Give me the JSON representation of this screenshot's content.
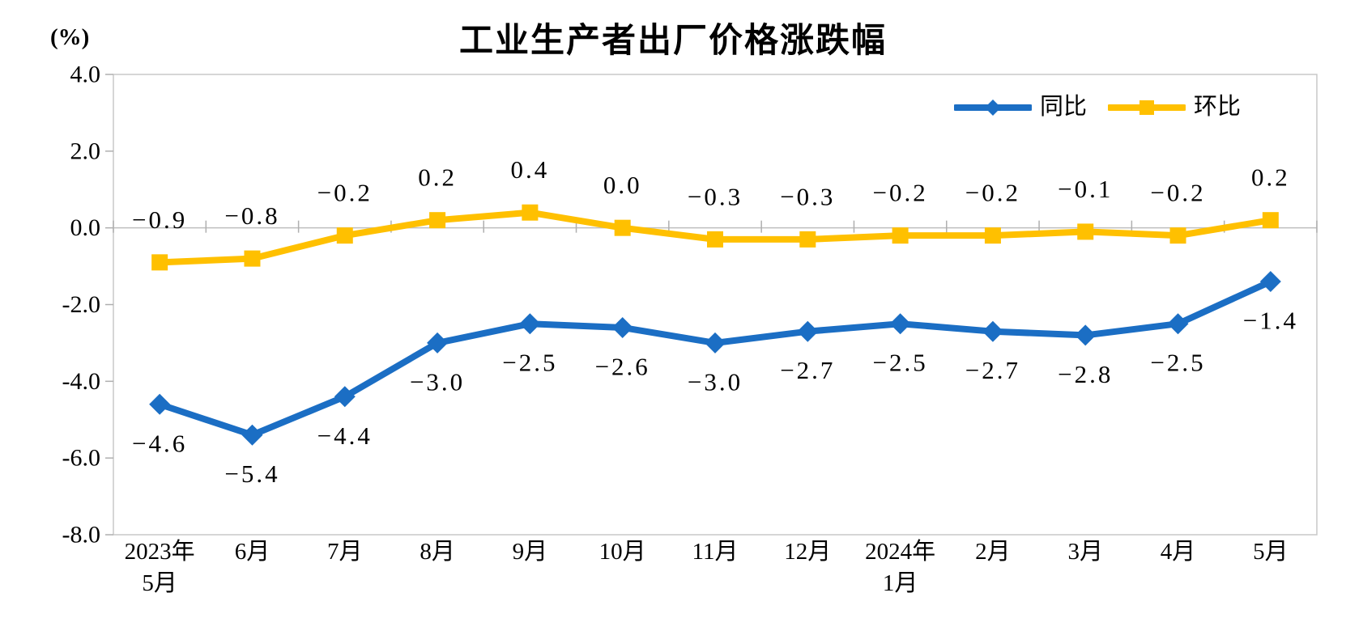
{
  "chart_data": {
    "type": "line",
    "title": "工业生产者出厂价格涨跌幅",
    "unit_label": "(%)",
    "grid": false,
    "legend_position": "top-right-inside",
    "categories": [
      {
        "label": "2023年",
        "sub": "5月"
      },
      {
        "label": "6月"
      },
      {
        "label": "7月"
      },
      {
        "label": "8月"
      },
      {
        "label": "9月"
      },
      {
        "label": "10月"
      },
      {
        "label": "11月"
      },
      {
        "label": "12月"
      },
      {
        "label": "2024年",
        "sub": "1月"
      },
      {
        "label": "2月"
      },
      {
        "label": "3月"
      },
      {
        "label": "4月"
      },
      {
        "label": "5月"
      }
    ],
    "y_axis": {
      "min": -8.0,
      "max": 4.0,
      "step": 2.0,
      "tick_labels": [
        "4.0",
        "2.0",
        "0.0",
        "-2.0",
        "-4.0",
        "-6.0",
        "-8.0"
      ]
    },
    "series": [
      {
        "id": "yoy",
        "name": "同比",
        "color": "#1B6EC4",
        "marker": "diamond",
        "label_position": "below",
        "values": [
          -4.6,
          -5.4,
          -4.4,
          -3.0,
          -2.5,
          -2.6,
          -3.0,
          -2.7,
          -2.5,
          -2.7,
          -2.8,
          -2.5,
          -1.4
        ],
        "labels": [
          "−4.6",
          "−5.4",
          "−4.4",
          "−3.0",
          "−2.5",
          "−2.6",
          "−3.0",
          "−2.7",
          "−2.5",
          "−2.7",
          "−2.8",
          "−2.5",
          "−1.4"
        ]
      },
      {
        "id": "mom",
        "name": "环比",
        "color": "#FFC000",
        "marker": "square",
        "label_position": "above",
        "values": [
          -0.9,
          -0.8,
          -0.2,
          0.2,
          0.4,
          0.0,
          -0.3,
          -0.3,
          -0.2,
          -0.2,
          -0.1,
          -0.2,
          0.2
        ],
        "labels": [
          "−0.9",
          "−0.8",
          "−0.2",
          "0.2",
          "0.4",
          "0.0",
          "−0.3",
          "−0.3",
          "−0.2",
          "−0.2",
          "−0.1",
          "−0.2",
          "0.2"
        ]
      }
    ],
    "axis_color": "#C9C9C9",
    "zero_line_color": "#BFBFBF",
    "tick_color": "#AFAFAF"
  }
}
